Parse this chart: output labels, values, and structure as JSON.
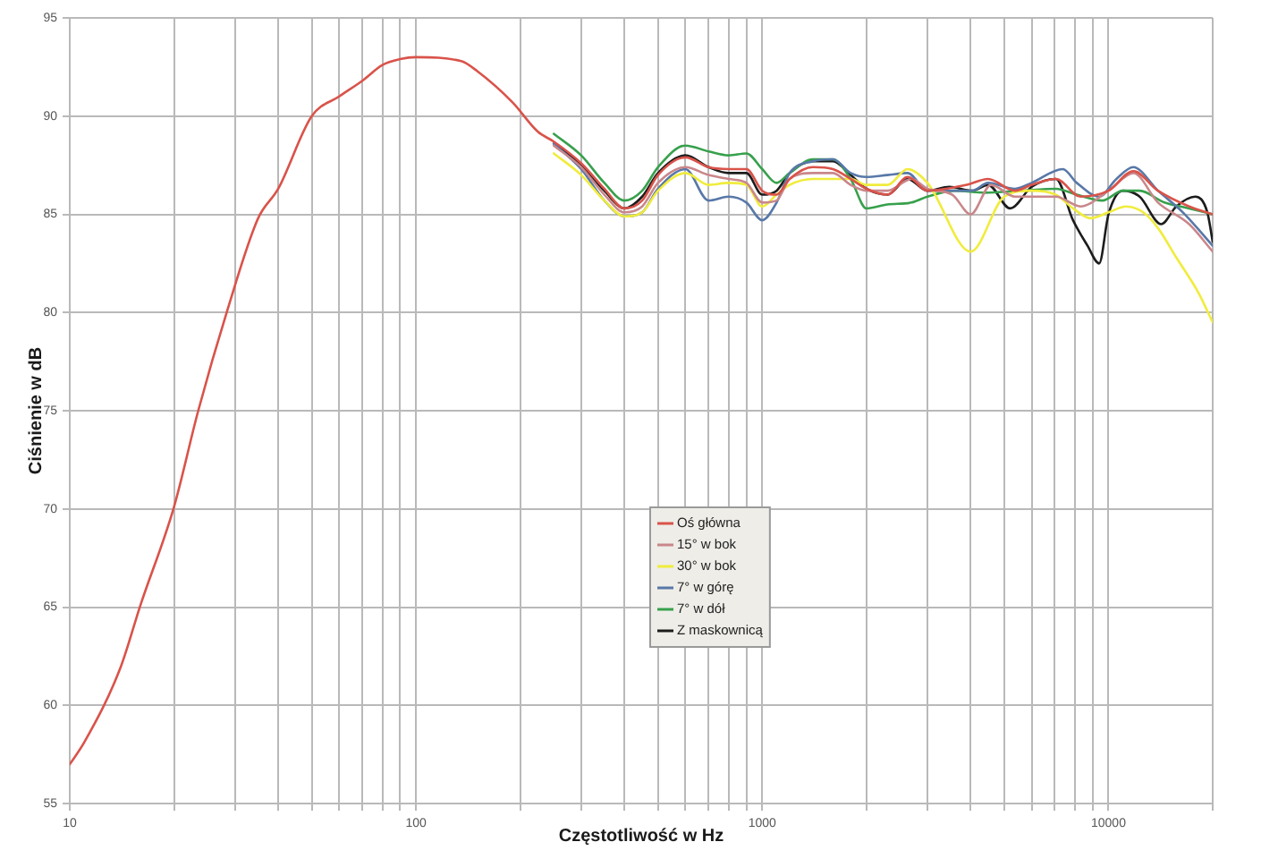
{
  "chart_data": {
    "type": "line",
    "xlabel": "Częstotliwość w Hz",
    "ylabel": "Ciśnienie w dB",
    "log": "x",
    "grid": true,
    "legend": "center",
    "marker": "none",
    "xlim": [
      10,
      20000
    ],
    "ylim": [
      55,
      95
    ],
    "xticks": [
      10,
      {
        "value": 20,
        "label": null
      },
      {
        "value": 30,
        "label": null
      },
      {
        "value": 40,
        "label": null
      },
      {
        "value": 50,
        "label": null
      },
      {
        "value": 60,
        "label": null
      },
      {
        "value": 70,
        "label": null
      },
      {
        "value": 80,
        "label": null
      },
      {
        "value": 90,
        "label": null
      },
      100,
      {
        "value": 200,
        "label": null
      },
      {
        "value": 300,
        "label": null
      },
      {
        "value": 400,
        "label": null
      },
      {
        "value": 500,
        "label": null
      },
      {
        "value": 600,
        "label": null
      },
      {
        "value": 700,
        "label": null
      },
      {
        "value": 800,
        "label": null
      },
      {
        "value": 900,
        "label": null
      },
      1000,
      {
        "value": 2000,
        "label": null
      },
      {
        "value": 3000,
        "label": null
      },
      {
        "value": 4000,
        "label": null
      },
      {
        "value": 5000,
        "label": null
      },
      {
        "value": 6000,
        "label": null
      },
      {
        "value": 7000,
        "label": null
      },
      {
        "value": 8000,
        "label": null
      },
      {
        "value": 9000,
        "label": null
      },
      10000,
      {
        "value": 20000,
        "label": null
      }
    ],
    "yticks": [
      55,
      60,
      65,
      70,
      75,
      80,
      85,
      90,
      95
    ],
    "series": [
      {
        "name": "Oś główna",
        "color": "#d9534a",
        "x": [
          10,
          11,
          14,
          16,
          20,
          23.5,
          28.5,
          35,
          40,
          50,
          60,
          70,
          80,
          90,
          100,
          135,
          150,
          190,
          225,
          250,
          300,
          350,
          400,
          450,
          500,
          600,
          700,
          800,
          900,
          1000,
          1100,
          1200,
          1400,
          1600,
          1800,
          2000,
          2300,
          2630,
          3000,
          3900,
          4490,
          5370,
          6000,
          7050,
          8300,
          10000,
          11800,
          13900,
          17100,
          20000
        ],
        "values": [
          57,
          58.1,
          61.9,
          65.1,
          70.1,
          75,
          80.1,
          84.8,
          86.3,
          90,
          91,
          91.8,
          92.6,
          92.9,
          93,
          92.8,
          92.3,
          90.7,
          89.2,
          88.7,
          87.6,
          86.3,
          85.3,
          85.7,
          87,
          87.9,
          87.4,
          87.3,
          87.3,
          86.2,
          86,
          86.8,
          87.4,
          87.3,
          86.8,
          86.3,
          86,
          86.9,
          86.2,
          86.5,
          86.8,
          86.2,
          86.5,
          86.8,
          85.9,
          86.2,
          87.2,
          86.2,
          85.4,
          85
        ]
      },
      {
        "name": "15° w bok",
        "color": "#c9878b",
        "x": [
          250,
          300,
          350,
          400,
          450,
          500,
          600,
          700,
          800,
          900,
          1000,
          1100,
          1200,
          1400,
          1600,
          1800,
          2000,
          2300,
          2700,
          3000,
          3540,
          4000,
          4580,
          5370,
          7050,
          8300,
          10000,
          11800,
          13900,
          17100,
          20000
        ],
        "values": [
          88.5,
          87.4,
          86,
          85.1,
          85.4,
          86.6,
          87.4,
          87,
          86.8,
          86.6,
          85.6,
          85.7,
          86.8,
          87.1,
          87.1,
          86.5,
          86.2,
          86.2,
          86.8,
          86.3,
          86,
          85,
          86.5,
          85.9,
          85.9,
          85.4,
          86.2,
          87.1,
          85.6,
          84.5,
          83.1
        ]
      },
      {
        "name": "30° w bok",
        "color": "#f0ec3c",
        "x": [
          250,
          300,
          350,
          400,
          450,
          500,
          600,
          700,
          800,
          900,
          1000,
          1100,
          1200,
          1400,
          1600,
          1800,
          2000,
          2300,
          2630,
          3000,
          4000,
          5000,
          6000,
          7050,
          7900,
          8870,
          10000,
          11250,
          12600,
          13900,
          15700,
          18200,
          20000
        ],
        "values": [
          88.1,
          87,
          85.7,
          84.9,
          85.1,
          86.2,
          87.1,
          86.5,
          86.6,
          86.5,
          85.4,
          86,
          86.5,
          86.8,
          86.8,
          86.8,
          86.5,
          86.5,
          87.3,
          86.6,
          83.1,
          85.9,
          86.2,
          86,
          85.3,
          84.8,
          85.1,
          85.4,
          85.1,
          84.3,
          82.8,
          81,
          79.5
        ]
      },
      {
        "name": "7° w górę",
        "color": "#5878a8",
        "x": [
          250,
          300,
          350,
          400,
          450,
          500,
          600,
          700,
          800,
          900,
          1000,
          1100,
          1200,
          1400,
          1600,
          1800,
          2000,
          2300,
          2630,
          3000,
          3470,
          4040,
          4490,
          5370,
          6000,
          7380,
          8100,
          9400,
          10540,
          11800,
          13900,
          16400,
          20000
        ],
        "values": [
          88.6,
          87.3,
          85.7,
          84.9,
          85.1,
          86.3,
          87.3,
          85.7,
          85.9,
          85.6,
          84.7,
          85.6,
          87.1,
          87.7,
          87.8,
          87.1,
          86.9,
          87,
          87.1,
          86.2,
          86.2,
          86.2,
          86.6,
          86.3,
          86.6,
          87.3,
          86.6,
          85.9,
          86.8,
          87.4,
          86.2,
          85.1,
          83.4
        ]
      },
      {
        "name": "7° w dół",
        "color": "#37a04c",
        "x": [
          250,
          300,
          350,
          400,
          450,
          500,
          600,
          700,
          800,
          900,
          1000,
          1100,
          1200,
          1400,
          1600,
          1800,
          2000,
          2300,
          2700,
          3000,
          3600,
          4400,
          5590,
          7050,
          8100,
          9600,
          11000,
          12300,
          14500,
          17100,
          20000
        ],
        "values": [
          89.1,
          88,
          86.6,
          85.7,
          86.2,
          87.4,
          88.5,
          88.2,
          88,
          88.1,
          87.3,
          86.6,
          87.1,
          87.8,
          87.8,
          86.8,
          85.3,
          85.5,
          85.6,
          85.9,
          86.2,
          86.1,
          86.2,
          86.3,
          86,
          85.7,
          86.2,
          86.2,
          85.6,
          85.3,
          85
        ]
      },
      {
        "name": "Z maskownicą",
        "color": "#1c1c1c",
        "x": [
          250,
          300,
          350,
          400,
          450,
          500,
          600,
          700,
          800,
          900,
          1000,
          1100,
          1200,
          1400,
          1600,
          1800,
          2000,
          2300,
          2630,
          3000,
          3470,
          4040,
          4490,
          5200,
          6000,
          7050,
          7900,
          8700,
          9400,
          10000,
          11000,
          12300,
          14200,
          15700,
          17800,
          19300,
          20000
        ],
        "values": [
          88.6,
          87.5,
          86.2,
          85.3,
          85.9,
          87.1,
          88,
          87.4,
          87.1,
          87.1,
          86,
          86.2,
          87.1,
          87.7,
          87.7,
          87,
          86.3,
          86,
          86.8,
          86.2,
          86.4,
          86.2,
          86.5,
          85.3,
          86.4,
          86.8,
          84.7,
          83.4,
          82.5,
          85,
          86.2,
          85.9,
          84.5,
          85.4,
          85.9,
          85.1,
          83.6
        ]
      }
    ]
  }
}
